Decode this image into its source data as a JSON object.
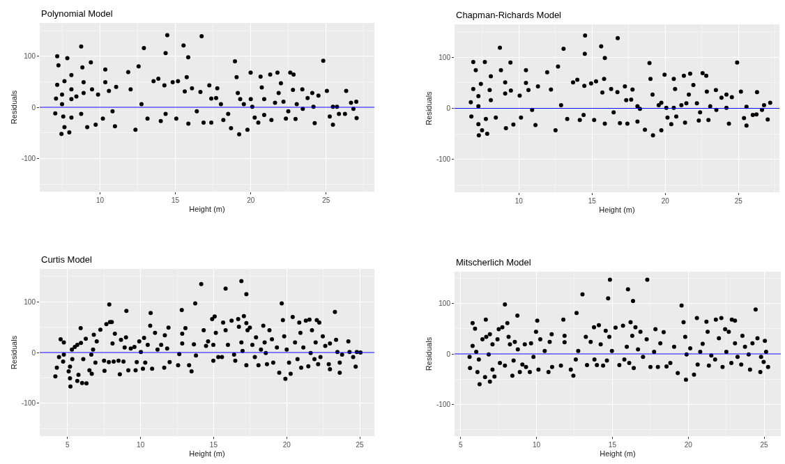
{
  "chart_data": [
    {
      "type": "scatter",
      "title": "Polynomial Model",
      "xlabel": "Height (m)",
      "ylabel": "Residuals",
      "color": "#000000",
      "marker": "circle",
      "grid": true,
      "xlim": [
        6.0,
        28.2
      ],
      "ylim": [
        -165,
        165
      ],
      "xticks": [
        10,
        15,
        20,
        25
      ],
      "yticks": [
        -100,
        0,
        100
      ],
      "ref_lines": [
        {
          "axis": "y",
          "value": 0,
          "color": "#0000ff"
        }
      ],
      "x": [
        7.16,
        7.24,
        7.83,
        8.75,
        7.08,
        7.03,
        7.44,
        7.16,
        7.64,
        8.1,
        8.83,
        7.48,
        8.1,
        8.91,
        7.48,
        8.1,
        8.43,
        7.56,
        8.1,
        8.75,
        7.64,
        7.96,
        9.39,
        8.91,
        9.47,
        9.15,
        9.71,
        10.35,
        10.35,
        9.87,
        10.19,
        10.59,
        11.07,
        10.83,
        10.99,
        11.87,
        12.03,
        12.35,
        12.56,
        12.91,
        12.75,
        13.15,
        13.55,
        13.87,
        14.35,
        14.46,
        14.27,
        14.35,
        14.03,
        14.82,
        15.06,
        15.17,
        15.54,
        15.85,
        15.75,
        15.62,
        16.1,
        15.86,
        16.42,
        16.74,
        16.66,
        16.87,
        17.25,
        17.38,
        17.7,
        17.38,
        17.78,
        18.02,
        18.18,
        18.69,
        18.95,
        19.06,
        19.14,
        19.23,
        19.54,
        19.78,
        19.99,
        20.1,
        20.26,
        20.65,
        20.73,
        20.5,
        20.89,
        21.29,
        21.37,
        21.61,
        21.77,
        22.0,
        21.85,
        22.17,
        22.49,
        22.62,
        22.84,
        22.33,
        22.8,
        23.05,
        22.97,
        23.42,
        23.45,
        23.77,
        24.08,
        24.16,
        24.24,
        24.49,
        24.81,
        25.05,
        25.24,
        25.45,
        25.45,
        25.85,
        26.33,
        26.25,
        26.65,
        27.0,
        27.02,
        26.81,
        25.72,
        19.3,
        20.0,
        18.5,
        20.89
      ],
      "values": [
        100,
        82,
        96,
        119,
        17,
        -12,
        -52,
        44,
        51,
        63,
        78,
        25,
        35,
        49,
        6,
        16,
        21,
        -18,
        -20,
        -13,
        -39,
        -49,
        88,
        28,
        35,
        -39,
        -34,
        74,
        49,
        25,
        -22,
        32,
        40,
        -8,
        -37,
        69,
        35,
        -44,
        80,
        116,
        6,
        -22,
        51,
        56,
        106,
        141,
        43,
        -13,
        -27,
        49,
        -22,
        51,
        121,
        98,
        59,
        31,
        37,
        -32,
        -8,
        139,
        30,
        -30,
        43,
        17,
        18,
        -30,
        37,
        6,
        -25,
        -41,
        90,
        59,
        28,
        -53,
        6,
        -44,
        68,
        1,
        -20,
        60,
        39,
        -30,
        -15,
        64,
        -25,
        9,
        68,
        47,
        28,
        11,
        -8,
        68,
        64,
        -22,
        34,
        6,
        -23,
        35,
        -3,
        18,
        28,
        1,
        -31,
        23,
        91,
        32,
        -18,
        1,
        -34,
        -13,
        32,
        -13,
        9,
        11,
        -21,
        -3,
        1,
        16,
        16,
        -13,
        16
      ]
    },
    {
      "type": "scatter",
      "title": "Chapman-Richards Model",
      "xlabel": "Height (m)",
      "ylabel": "Residuals",
      "color": "#000000",
      "marker": "circle",
      "grid": true,
      "xlim": [
        5.6,
        27.8
      ],
      "ylim": [
        -165,
        165
      ],
      "xticks": [
        10,
        15,
        20,
        25
      ],
      "yticks": [
        -100,
        0,
        100
      ],
      "ref_lines": [
        {
          "axis": "y",
          "value": 0,
          "color": "#0000ff"
        }
      ],
      "x": [
        6.88,
        7.05,
        7.67,
        8.7,
        6.71,
        6.75,
        7.26,
        6.88,
        7.4,
        8.08,
        8.77,
        7.23,
        8.0,
        9.06,
        7.23,
        8.08,
        7.23,
        7.74,
        8.42,
        7.48,
        7.83,
        9.42,
        9.06,
        9.45,
        9.11,
        9.62,
        10.48,
        10.48,
        10.05,
        10.14,
        10.65,
        11.3,
        10.9,
        11.13,
        11.93,
        12.19,
        12.5,
        12.67,
        13.05,
        12.88,
        13.3,
        13.7,
        13.99,
        14.5,
        14.52,
        14.47,
        14.42,
        14.16,
        14.93,
        15.14,
        15.27,
        15.62,
        15.87,
        15.82,
        15.7,
        16.3,
        15.87,
        16.47,
        16.75,
        16.73,
        16.9,
        17.24,
        17.33,
        17.67,
        17.41,
        17.76,
        18.1,
        18.1,
        18.61,
        18.92,
        18.99,
        19.13,
        19.16,
        19.55,
        19.73,
        19.95,
        20.07,
        20.15,
        20.58,
        20.67,
        20.41,
        20.75,
        21.27,
        21.35,
        21.44,
        21.7,
        21.92,
        21.61,
        22.16,
        22.38,
        22.55,
        22.8,
        22.29,
        22.84,
        23.07,
        22.95,
        23.46,
        23.49,
        23.84,
        24.18,
        24.18,
        24.35,
        24.55,
        24.91,
        25.17,
        25.38,
        25.55,
        25.55,
        25.98,
        26.27,
        26.23,
        26.75,
        27.0,
        27.17,
        26.61,
        19.73,
        20.58,
        18.27,
        21.1
      ],
      "values": [
        91,
        75,
        91,
        119,
        12,
        -16,
        -53,
        38,
        48,
        63,
        75,
        24,
        36,
        51,
        4,
        16,
        -31,
        -21,
        -18,
        -43,
        -50,
        90,
        29,
        35,
        -39,
        -32,
        75,
        50,
        25,
        -18,
        36,
        43,
        -3,
        -33,
        71,
        37,
        -43,
        82,
        117,
        6,
        -21,
        51,
        56,
        107,
        143,
        44,
        -13,
        -23,
        49,
        -23,
        53,
        122,
        99,
        58,
        31,
        38,
        -30,
        -8,
        138,
        32,
        -29,
        43,
        16,
        17,
        -30,
        37,
        4,
        -26,
        -42,
        89,
        58,
        27,
        -53,
        6,
        -43,
        66,
        1,
        -18,
        58,
        38,
        -31,
        -16,
        64,
        -28,
        10,
        68,
        46,
        27,
        10,
        -8,
        69,
        64,
        -24,
        33,
        4,
        -23,
        36,
        -3,
        21,
        27,
        1,
        -30,
        22,
        90,
        33,
        -19,
        3,
        -34,
        -13,
        32,
        -12,
        6,
        -22,
        11,
        -3,
        11,
        1,
        -1,
        6
      ]
    },
    {
      "type": "scatter",
      "title": "Curtis Model",
      "xlabel": "Height (m)",
      "ylabel": "Residuals",
      "color": "#000000",
      "marker": "circle",
      "grid": true,
      "xlim": [
        3.1,
        26.0
      ],
      "ylim": [
        -165,
        165
      ],
      "xticks": [
        5,
        10,
        15,
        20,
        25
      ],
      "yticks": [
        -100,
        0,
        100
      ],
      "ref_lines": [
        {
          "axis": "y",
          "value": 0,
          "color": "#0000ff"
        }
      ],
      "x": [
        4.17,
        4.27,
        4.53,
        4.75,
        4.42,
        4.7,
        4.75,
        5.08,
        5.2,
        5.17,
        5.17,
        5.33,
        5.3,
        5.5,
        5.67,
        5.92,
        5.9,
        5.67,
        6.0,
        5.75,
        6.08,
        6.25,
        6.3,
        6.5,
        6.66,
        6.63,
        6.75,
        6.8,
        6.91,
        7.0,
        7.25,
        7.5,
        7.53,
        7.66,
        7.86,
        7.91,
        8.03,
        7.83,
        8.16,
        8.08,
        8.24,
        8.49,
        8.58,
        8.66,
        8.83,
        8.91,
        9.03,
        9.0,
        9.16,
        9.33,
        9.58,
        9.66,
        9.74,
        9.91,
        10.02,
        10.16,
        10.24,
        10.32,
        10.49,
        10.66,
        10.69,
        10.79,
        10.99,
        11.16,
        11.41,
        11.66,
        11.62,
        11.82,
        11.91,
        11.99,
        12.57,
        12.65,
        12.82,
        12.85,
        12.85,
        13.07,
        13.32,
        13.49,
        13.65,
        13.74,
        13.79,
        14.15,
        14.32,
        14.48,
        14.62,
        14.9,
        15.07,
        15.15,
        14.98,
        14.98,
        15.32,
        15.57,
        15.65,
        15.82,
        15.82,
        15.98,
        16.23,
        16.4,
        16.48,
        16.68,
        16.73,
        16.9,
        16.9,
        16.98,
        17.07,
        17.24,
        17.24,
        17.32,
        17.24,
        17.48,
        17.65,
        17.82,
        17.9,
        18.07,
        18.24,
        18.4,
        18.49,
        18.57,
        18.65,
        18.82,
        18.99,
        19.08,
        19.33,
        19.49,
        19.66,
        19.74,
        19.83,
        19.91,
        20.0,
        20.16,
        20.27,
        20.41,
        20.57,
        20.74,
        20.86,
        20.94,
        20.99,
        21.14,
        21.31,
        21.48,
        21.56,
        21.64,
        21.73,
        21.9,
        21.98,
        22.06,
        22.23,
        22.15,
        22.31,
        22.47,
        22.64,
        22.88,
        22.96,
        22.96,
        23.3,
        23.38,
        23.47,
        23.63,
        23.63,
        23.79,
        24.22,
        24.3,
        24.55,
        24.72,
        24.8,
        25.05
      ],
      "values": [
        -47,
        -30,
        26,
        20,
        -9,
        -18,
        -4,
        -37,
        -67,
        -51,
        -28,
        -13,
        6,
        11,
        15,
        19,
        48,
        -56,
        -60,
        -44,
        -13,
        27,
        -61,
        -35,
        -42,
        -4,
        6,
        35,
        -20,
        22,
        45,
        -16,
        -36,
        56,
        95,
        60,
        60,
        -19,
        -18,
        18,
        37,
        -16,
        -43,
        25,
        -18,
        10,
        82,
        30,
        -35,
        8,
        11,
        -35,
        -19,
        22,
        1,
        -32,
        29,
        -20,
        15,
        53,
        78,
        -32,
        39,
        6,
        15,
        34,
        -30,
        8,
        49,
        -19,
        -25,
        -3,
        84,
        37,
        18,
        48,
        -25,
        -37,
        16,
        97,
        -6,
        135,
        44,
        13,
        22,
        66,
        71,
        39,
        15,
        -16,
        -9,
        -9,
        59,
        126,
        44,
        15,
        63,
        -4,
        -16,
        66,
        51,
        141,
        20,
        3,
        72,
        115,
        58,
        44,
        -25,
        49,
        15,
        -9,
        30,
        -25,
        6,
        53,
        20,
        -1,
        -23,
        44,
        26,
        -20,
        10,
        -40,
        97,
        64,
        32,
        -52,
        6,
        -20,
        -42,
        70,
        20,
        -13,
        59,
        39,
        -30,
        10,
        63,
        -27,
        65,
        -1,
        44,
        -13,
        20,
        64,
        59,
        -23,
        -9,
        32,
        13,
        -23,
        18,
        -33,
        80,
        25,
        1,
        -40,
        -20,
        -4,
        22,
        1,
        -9,
        -28,
        1,
        0
      ]
    },
    {
      "type": "scatter",
      "title": "Mitscherlich Model",
      "xlabel": "Height (m)",
      "ylabel": "Residuals",
      "color": "#000000",
      "marker": "circle",
      "grid": true,
      "xlim": [
        4.6,
        26.1
      ],
      "ylim": [
        -163,
        163
      ],
      "xticks": [
        5,
        10,
        15,
        20,
        25
      ],
      "yticks": [
        -100,
        0,
        100
      ],
      "ref_lines": [
        {
          "axis": "y",
          "value": 0,
          "color": "#0000ff"
        }
      ],
      "x": [
        5.79,
        5.95,
        5.59,
        5.62,
        5.79,
        6.03,
        6.2,
        6.11,
        6.25,
        6.44,
        6.66,
        6.69,
        6.61,
        6.93,
        6.85,
        6.93,
        7.1,
        7.1,
        7.23,
        7.43,
        7.51,
        7.59,
        7.75,
        7.92,
        8.08,
        7.92,
        8.25,
        8.16,
        8.49,
        8.41,
        8.57,
        8.74,
        8.77,
        8.9,
        9.07,
        9.23,
        9.31,
        9.56,
        9.64,
        9.8,
        9.97,
        10.05,
        10.13,
        10.25,
        10.54,
        10.79,
        10.87,
        11.0,
        11.03,
        11.61,
        11.77,
        11.85,
        11.85,
        12.26,
        12.43,
        12.64,
        12.59,
        12.75,
        13.03,
        13.25,
        13.33,
        13.57,
        13.79,
        13.82,
        13.98,
        14.11,
        14.23,
        14.39,
        14.56,
        14.64,
        14.72,
        14.8,
        14.84,
        14.97,
        15.21,
        15.46,
        15.7,
        15.79,
        15.95,
        16.03,
        16.11,
        16.2,
        16.31,
        16.36,
        16.41,
        16.52,
        16.69,
        16.85,
        17.02,
        17.26,
        17.3,
        17.51,
        17.75,
        17.84,
        18.0,
        18.16,
        18.38,
        18.57,
        18.82,
        19.07,
        19.31,
        19.56,
        19.69,
        19.8,
        19.85,
        19.89,
        20.13,
        20.38,
        20.57,
        20.62,
        20.79,
        20.95,
        21.2,
        21.28,
        21.36,
        21.52,
        21.77,
        21.82,
        22.02,
        22.18,
        22.26,
        22.43,
        22.51,
        22.67,
        22.84,
        22.87,
        23.08,
        23.08,
        23.25,
        23.49,
        23.57,
        23.74,
        23.98,
        24.07,
        24.23,
        24.44,
        24.56,
        24.75,
        24.8,
        24.97,
        25.05,
        25.13,
        25.26
      ],
      "values": [
        61,
        50,
        -6,
        -28,
        16,
        4,
        -11,
        -36,
        -60,
        29,
        68,
        34,
        -46,
        -55,
        -1,
        39,
        19,
        -31,
        -45,
        29,
        49,
        -18,
        53,
        98,
        61,
        -23,
        19,
        34,
        -13,
        -43,
        24,
        76,
        9,
        -36,
        -21,
        19,
        -26,
        -36,
        21,
        -6,
        44,
        66,
        -31,
        29,
        6,
        -36,
        24,
        39,
        -26,
        -23,
        68,
        23,
        36,
        -31,
        -43,
        81,
        -11,
        6,
        118,
        34,
        -22,
        24,
        53,
        -11,
        -22,
        57,
        19,
        -23,
        46,
        -13,
        110,
        34,
        147,
        6,
        52,
        -22,
        56,
        -11,
        14,
        128,
        -18,
        63,
        36,
        105,
        -28,
        53,
        9,
        44,
        -6,
        29,
        147,
        -26,
        4,
        49,
        -26,
        21,
        43,
        -25,
        -18,
        14,
        -38,
        96,
        63,
        34,
        -51,
        -1,
        11,
        -41,
        71,
        -21,
        4,
        20,
        64,
        44,
        -23,
        -3,
        -11,
        68,
        31,
        71,
        -26,
        49,
        4,
        44,
        -18,
        68,
        66,
        21,
        -6,
        -21,
        36,
        14,
        -1,
        -31,
        21,
        88,
        31,
        -36,
        -6,
        -16,
        26,
        4,
        -26
      ]
    }
  ]
}
